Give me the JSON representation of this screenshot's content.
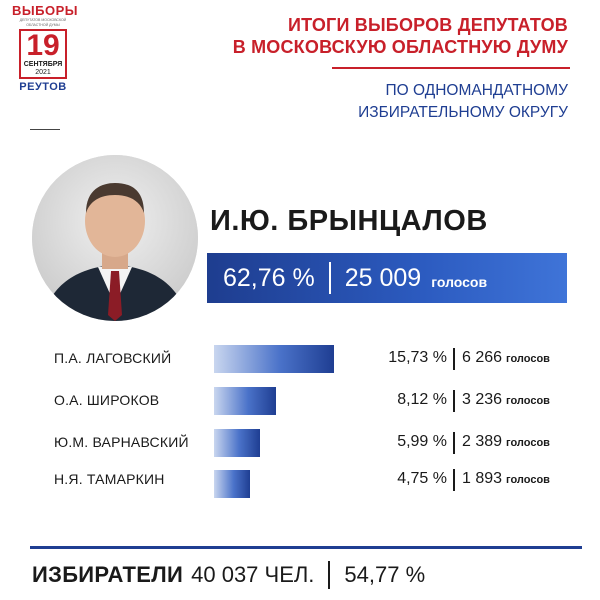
{
  "logo": {
    "top": "ВЫБОРЫ",
    "small": "ДЕПУТАТОВ МОСКОВСКОЙ ОБЛАСТНОЙ ДУМЫ",
    "day": "19",
    "month": "СЕНТЯБРЯ",
    "year": "2021",
    "city": "РЕУТОВ"
  },
  "header": {
    "title_line1": "ИТОГИ ВЫБОРОВ ДЕПУТАТОВ",
    "title_line2": "В МОСКОВСКУЮ ОБЛАСТНУЮ ДУМУ",
    "subtitle_line1": "ПО ОДНОМАНДАТНОМУ",
    "subtitle_line2": "ИЗБИРАТЕЛЬНОМУ ОКРУГУ"
  },
  "winner": {
    "name": "И.Ю. БРЫНЦАЛОВ",
    "percent_label": "62,76 %",
    "votes_label": "25 009",
    "unit": "голосов"
  },
  "footer": {
    "label": "ИЗБИРАТЕЛИ",
    "value": "40 037 ЧЕЛ.",
    "percent": "54,77 %"
  },
  "chart_data": {
    "type": "bar",
    "orientation": "horizontal",
    "categories": [
      "И.Ю. БРЫНЦАЛОВ",
      "П.А. ЛАГОВСКИЙ",
      "О.А. ШИРОКОВ",
      "Ю.М. ВАРНАВСКИЙ",
      "Н.Я. ТАМАРКИН"
    ],
    "values": [
      62.76,
      15.73,
      8.12,
      5.99,
      4.75
    ],
    "votes": [
      25009,
      6266,
      3236,
      2389,
      1893
    ],
    "percent_labels": [
      "62,76 %",
      "15,73 %",
      "8,12 %",
      "5,99 %",
      "4,75 %"
    ],
    "vote_labels": [
      "25 009",
      "6 266",
      "3 236",
      "2 389",
      "1 893"
    ],
    "unit": "голосов",
    "colors": {
      "bar_start": "#c9d6ef",
      "bar_end": "#1f3e92",
      "accent_red": "#c8202a"
    }
  }
}
